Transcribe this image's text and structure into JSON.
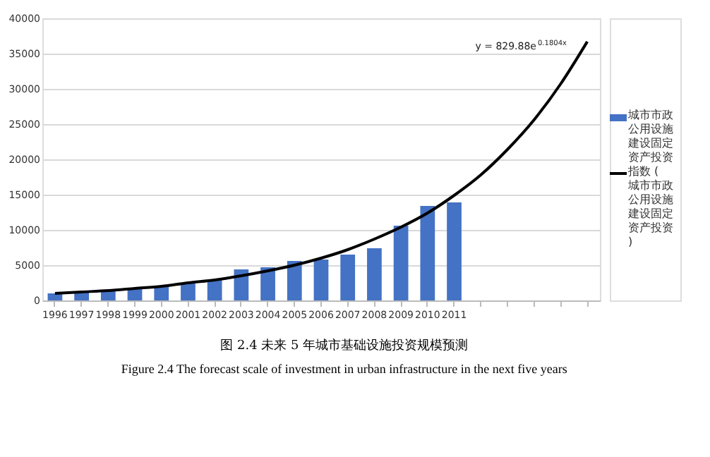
{
  "chart_data": {
    "type": "bar",
    "title": "图 2.4   未来 5 年城市基础设施投资规模预测",
    "subtitle": "Figure 2.4    The forecast scale of investment in urban infrastructure in the next five years",
    "categories": [
      "1996",
      "1997",
      "1998",
      "1999",
      "2000",
      "2001",
      "2002",
      "2003",
      "2004",
      "2005",
      "2006",
      "2007",
      "2008",
      "2009",
      "2010",
      "2011",
      null,
      null,
      null,
      null,
      null
    ],
    "series": [
      {
        "name": "城市市政公用设施建设固定资产投资",
        "color": "#4472c4",
        "values": [
          1000,
          1300,
          1500,
          1800,
          2000,
          2400,
          2900,
          4400,
          4700,
          5600,
          5800,
          6500,
          7400,
          10600,
          13400,
          13900,
          null,
          null,
          null,
          null,
          null
        ]
      },
      {
        "name": "指数 (城市市政公用设施建设固定资产投资)",
        "type": "line",
        "color": "#000000",
        "values": [
          1000,
          1200,
          1400,
          1700,
          2000,
          2500,
          2900,
          3500,
          4200,
          5000,
          6000,
          7200,
          8700,
          10400,
          12400,
          14900,
          17800,
          21400,
          25600,
          30700,
          36700
        ]
      }
    ],
    "annotations": [
      "y = 829.88e$^{0.1804x}$"
    ],
    "ylim": [
      0,
      40000
    ],
    "yticks": [
      0,
      5000,
      10000,
      15000,
      20000,
      25000,
      30000,
      35000,
      40000
    ],
    "grid": "y",
    "legend": "right"
  }
}
